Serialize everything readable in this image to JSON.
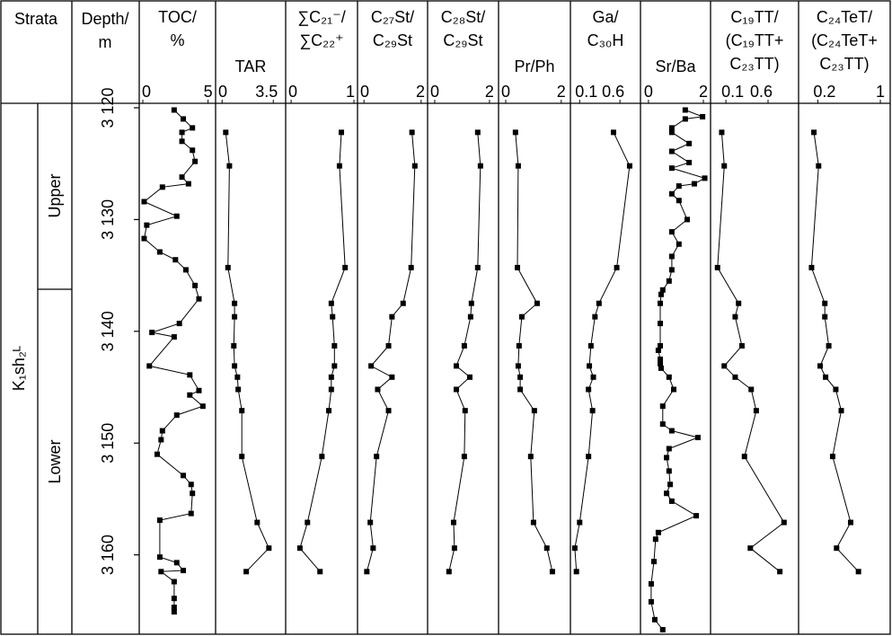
{
  "chart_data": {
    "type": "line",
    "strata_header": "Strata",
    "formation": "K₁sh₂ᴸ",
    "members": [
      "Upper",
      "Lower"
    ],
    "y_label": [
      "Depth/",
      "m"
    ],
    "ylim": [
      3119.6,
      3167.1
    ],
    "yticks": [
      {
        "value": 3120,
        "label": "3 120"
      },
      {
        "value": 3130,
        "label": "3 130"
      },
      {
        "value": 3140,
        "label": "3 140"
      },
      {
        "value": 3150,
        "label": "3 150"
      },
      {
        "value": 3160,
        "label": "3 160"
      }
    ],
    "color": "#000000",
    "panels": [
      {
        "title": [
          "TOC/",
          "%"
        ],
        "xlim": [
          0,
          5.3
        ],
        "xticks": [
          0,
          5
        ],
        "depths": [
          3120.2,
          3121.0,
          3121.8,
          3122.2,
          3123.0,
          3123.8,
          3124.8,
          3126.2,
          3126.8,
          3127.1,
          3128.4,
          3129.7,
          3130.5,
          3131.7,
          3132.9,
          3133.6,
          3134.5,
          3135.9,
          3137.1,
          3139.3,
          3140.1,
          3140.5,
          3143.1,
          3143.9,
          3145.3,
          3145.7,
          3146.7,
          3147.5,
          3148.9,
          3149.7,
          3151.0,
          3152.9,
          3153.7,
          3154.5,
          3156.3,
          3156.9,
          3160.2,
          3160.7,
          3161.4,
          3161.5,
          3162.4,
          3163.9,
          3164.7,
          3165.1
        ],
        "values": [
          2.4,
          3.1,
          3.8,
          3.0,
          3.0,
          3.8,
          4.0,
          3.0,
          3.5,
          1.5,
          0.1,
          2.6,
          0.3,
          0.1,
          1.3,
          2.5,
          3.3,
          4.0,
          4.3,
          2.8,
          0.7,
          2.4,
          0.5,
          3.6,
          4.3,
          3.6,
          4.6,
          2.6,
          1.5,
          1.4,
          1.1,
          3.1,
          3.7,
          3.8,
          3.7,
          1.3,
          1.3,
          2.6,
          3.1,
          1.4,
          2.4,
          2.4,
          2.4,
          2.4
        ]
      },
      {
        "title": [
          "TAR"
        ],
        "xlim": [
          -0.2,
          4.1
        ],
        "xticks": [
          0,
          3.5
        ],
        "depths": [
          3122.2,
          3125.2,
          3134.3,
          3137.5,
          3138.7,
          3141.3,
          3143.1,
          3144.1,
          3145.2,
          3147.1,
          3151.2,
          3157.1,
          3159.4,
          3161.5
        ],
        "values": [
          0.25,
          0.5,
          0.4,
          0.85,
          0.85,
          0.8,
          0.85,
          1.05,
          1.1,
          1.35,
          1.35,
          2.4,
          3.2,
          1.65
        ]
      },
      {
        "title": [
          "∑C₂₁⁻/",
          "∑C₂₂⁺"
        ],
        "xlim": [
          -0.03,
          1.0
        ],
        "xticks": [
          0,
          1
        ],
        "depths": [
          3122.2,
          3125.2,
          3134.3,
          3137.5,
          3138.7,
          3141.3,
          3143.1,
          3144.1,
          3145.2,
          3147.1,
          3151.2,
          3157.1,
          3159.4,
          3161.5
        ],
        "values": [
          0.8,
          0.77,
          0.86,
          0.64,
          0.66,
          0.69,
          0.69,
          0.64,
          0.64,
          0.6,
          0.49,
          0.26,
          0.14,
          0.46
        ]
      },
      {
        "title": [
          "C₂₇St/",
          "C₂₉St"
        ],
        "xlim": [
          -0.1,
          2.1
        ],
        "xticks": [
          0,
          2
        ],
        "depths": [
          3122.2,
          3125.2,
          3134.3,
          3137.5,
          3138.7,
          3141.3,
          3143.1,
          3144.1,
          3145.2,
          3147.1,
          3151.2,
          3157.1,
          3159.4,
          3161.5
        ],
        "values": [
          1.68,
          1.78,
          1.65,
          1.37,
          0.98,
          0.86,
          0.25,
          0.98,
          0.48,
          0.86,
          0.44,
          0.22,
          0.32,
          0.1
        ]
      },
      {
        "title": [
          "C₂₈St/",
          "C₂₉St"
        ],
        "xlim": [
          -0.13,
          2.2
        ],
        "xticks": [
          0,
          2
        ],
        "depths": [
          3122.2,
          3125.2,
          3134.3,
          3137.5,
          3138.7,
          3141.3,
          3143.1,
          3144.1,
          3145.2,
          3147.1,
          3151.2,
          3157.1,
          3159.4,
          3161.5
        ],
        "values": [
          1.57,
          1.67,
          1.57,
          1.34,
          1.31,
          1.08,
          0.79,
          1.28,
          0.79,
          1.11,
          1.08,
          0.69,
          0.72,
          0.52
        ]
      },
      {
        "title": [
          "Pr/Ph"
        ],
        "xlim": [
          -0.13,
          2.2
        ],
        "xticks": [
          0,
          2
        ],
        "depths": [
          3122.2,
          3125.2,
          3134.3,
          3137.5,
          3138.7,
          3141.3,
          3143.1,
          3144.1,
          3145.2,
          3147.1,
          3151.2,
          3157.1,
          3159.4,
          3161.5
        ],
        "values": [
          0.35,
          0.45,
          0.42,
          1.13,
          0.58,
          0.48,
          0.45,
          0.52,
          0.52,
          1.03,
          0.9,
          1.0,
          1.48,
          1.68
        ]
      },
      {
        "title": [
          "Ga/",
          "C₃₀H"
        ],
        "xlim": [
          0.03,
          0.81
        ],
        "xticks": [
          0.1,
          0.6
        ],
        "depths": [
          3122.2,
          3125.2,
          3134.3,
          3137.5,
          3138.7,
          3141.3,
          3143.1,
          3144.1,
          3145.2,
          3147.1,
          3151.2,
          3157.1,
          3159.4,
          3161.5
        ],
        "values": [
          0.52,
          0.72,
          0.56,
          0.34,
          0.29,
          0.24,
          0.22,
          0.27,
          0.21,
          0.26,
          0.21,
          0.1,
          0.04,
          0.06
        ]
      },
      {
        "title": [
          "Sr/Ba"
        ],
        "xlim": [
          -0.16,
          2.13
        ],
        "xticks": [
          0,
          2
        ],
        "depths": [
          3120.2,
          3120.8,
          3121.0,
          3121.8,
          3122.2,
          3123.2,
          3123.9,
          3124.9,
          3125.4,
          3126.3,
          3126.8,
          3127.0,
          3127.7,
          3128.3,
          3130.0,
          3131.1,
          3132.2,
          3133.3,
          3134.5,
          3135.5,
          3136.3,
          3136.7,
          3137.5,
          3139.3,
          3141.3,
          3141.7,
          3142.5,
          3142.9,
          3143.3,
          3144.1,
          3145.2,
          3146.7,
          3148.3,
          3148.9,
          3149.5,
          3150.5,
          3151.3,
          3152.5,
          3153.7,
          3154.5,
          3155.2,
          3156.5,
          3158.0,
          3158.6,
          3160.6,
          3162.6,
          3164.2,
          3165.8,
          3166.7
        ],
        "values": [
          1.34,
          1.97,
          1.34,
          0.85,
          0.85,
          1.48,
          0.85,
          1.48,
          0.85,
          2.05,
          1.67,
          1.11,
          0.85,
          1.11,
          1.41,
          0.85,
          1.11,
          0.85,
          0.85,
          0.75,
          0.52,
          0.46,
          0.43,
          0.43,
          0.43,
          0.36,
          0.43,
          0.43,
          0.46,
          0.75,
          0.92,
          0.52,
          0.52,
          0.85,
          1.8,
          0.75,
          0.66,
          0.75,
          0.79,
          0.66,
          0.85,
          1.74,
          0.36,
          0.26,
          0.2,
          0.1,
          0.1,
          0.23,
          0.52
        ]
      },
      {
        "title": [
          "C₁₉TT/",
          "(C₁₉TT+",
          "C₂₃TT)"
        ],
        "xlim": [
          -0.04,
          0.92
        ],
        "xticks": [
          0.1,
          0.6
        ],
        "depths": [
          3122.2,
          3125.2,
          3134.3,
          3137.5,
          3138.7,
          3141.3,
          3143.1,
          3144.1,
          3145.2,
          3147.1,
          3151.2,
          3157.1,
          3159.4,
          3161.5
        ],
        "values": [
          0.05,
          0.08,
          0.0,
          0.25,
          0.21,
          0.29,
          0.08,
          0.21,
          0.4,
          0.46,
          0.32,
          0.79,
          0.39,
          0.74
        ]
      },
      {
        "title": [
          "C₂₄TeT/",
          "(C₂₄TeT+",
          "C₂₃TT)"
        ],
        "xlim": [
          0.0,
          1.08
        ],
        "xticks": [
          0.2,
          1
        ],
        "depths": [
          3122.2,
          3125.2,
          3134.3,
          3137.5,
          3138.7,
          3141.3,
          3143.1,
          3144.1,
          3145.2,
          3147.1,
          3151.2,
          3157.1,
          3159.4,
          3161.5
        ],
        "values": [
          0.15,
          0.21,
          0.12,
          0.29,
          0.29,
          0.34,
          0.23,
          0.3,
          0.43,
          0.5,
          0.39,
          0.62,
          0.44,
          0.72
        ]
      }
    ]
  }
}
